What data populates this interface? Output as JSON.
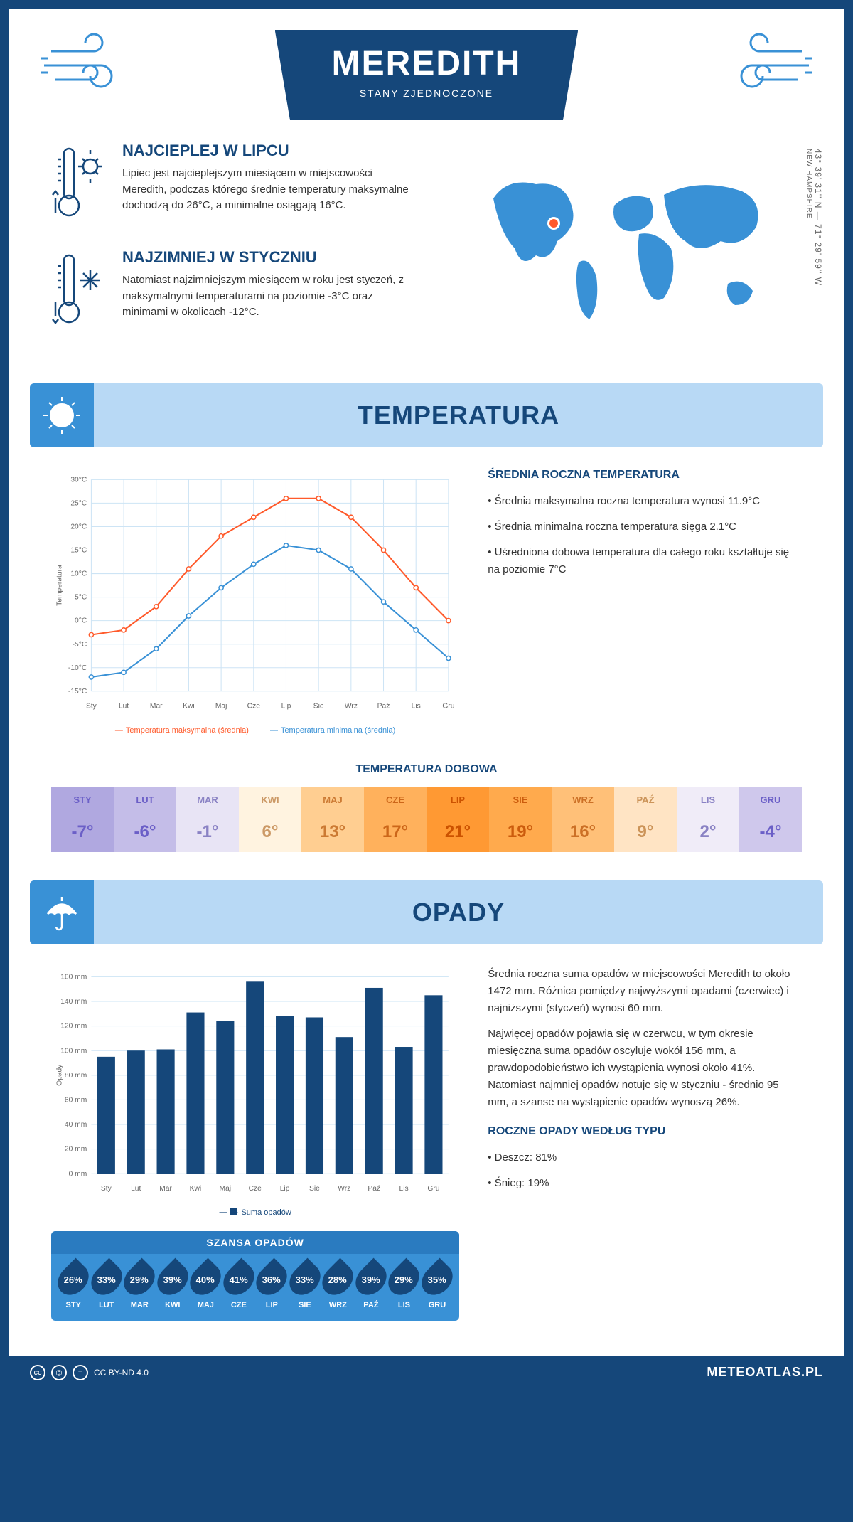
{
  "header": {
    "city": "MEREDITH",
    "country": "STANY ZJEDNOCZONE"
  },
  "location": {
    "coords": "43° 39' 31'' N — 71° 29' 59'' W",
    "state": "NEW HAMPSHIRE",
    "marker_color": "#ff5a2b",
    "map_color": "#3991d6"
  },
  "facts": {
    "hot": {
      "title": "NAJCIEPLEJ W LIPCU",
      "text": "Lipiec jest najcieplejszym miesiącem w miejscowości Meredith, podczas którego średnie temperatury maksymalne dochodzą do 26°C, a minimalne osiągają 16°C."
    },
    "cold": {
      "title": "NAJZIMNIEJ W STYCZNIU",
      "text": "Natomiast najzimniejszym miesiącem w roku jest styczeń, z maksymalnymi temperaturami na poziomie -3°C oraz minimami w okolicach -12°C."
    }
  },
  "sections": {
    "temperature_title": "TEMPERATURA",
    "precipitation_title": "OPADY"
  },
  "temp_chart": {
    "type": "line",
    "months": [
      "Sty",
      "Lut",
      "Mar",
      "Kwi",
      "Maj",
      "Cze",
      "Lip",
      "Sie",
      "Wrz",
      "Paź",
      "Lis",
      "Gru"
    ],
    "y_label": "Temperatura",
    "y_ticks": [
      -15,
      -10,
      -5,
      0,
      5,
      10,
      15,
      20,
      25,
      30
    ],
    "y_tick_labels": [
      "-15°C",
      "-10°C",
      "-5°C",
      "0°C",
      "5°C",
      "10°C",
      "15°C",
      "20°C",
      "25°C",
      "30°C"
    ],
    "ylim": [
      -15,
      30
    ],
    "series": [
      {
        "name": "Temperatura maksymalna (średnia)",
        "color": "#ff5a2b",
        "values": [
          -3,
          -2,
          3,
          11,
          18,
          22,
          26,
          26,
          22,
          15,
          7,
          0
        ]
      },
      {
        "name": "Temperatura minimalna (średnia)",
        "color": "#3991d6",
        "values": [
          -12,
          -11,
          -6,
          1,
          7,
          12,
          16,
          15,
          11,
          4,
          -2,
          -8
        ]
      }
    ],
    "marker_size": 3,
    "line_width": 2,
    "grid_color": "#cde4f5",
    "background": "#ffffff"
  },
  "temp_summary": {
    "title": "ŚREDNIA ROCZNA TEMPERATURA",
    "bullets": [
      "• Średnia maksymalna roczna temperatura wynosi 11.9°C",
      "• Średnia minimalna roczna temperatura sięga 2.1°C",
      "• Uśredniona dobowa temperatura dla całego roku kształtuje się na poziomie 7°C"
    ]
  },
  "daily_temp": {
    "title": "TEMPERATURA DOBOWA",
    "months": [
      "STY",
      "LUT",
      "MAR",
      "KWI",
      "MAJ",
      "CZE",
      "LIP",
      "SIE",
      "WRZ",
      "PAŹ",
      "LIS",
      "GRU"
    ],
    "values": [
      "-7°",
      "-6°",
      "-1°",
      "6°",
      "13°",
      "17°",
      "21°",
      "19°",
      "16°",
      "9°",
      "2°",
      "-4°"
    ],
    "colors": [
      "#b0a8e0",
      "#c4bde8",
      "#e8e4f5",
      "#fff3e0",
      "#ffce91",
      "#ffb15c",
      "#ff9933",
      "#ffaa4d",
      "#ffc078",
      "#ffe4c4",
      "#f0ecf8",
      "#cfc8ec"
    ],
    "text_colors": [
      "#6b5fc7",
      "#6b5fc7",
      "#8a82c4",
      "#cc9966",
      "#cc7a33",
      "#cc6619",
      "#cc5200",
      "#cc5c0d",
      "#cc7026",
      "#cc9459",
      "#8a82c4",
      "#6b5fc7"
    ]
  },
  "precip_chart": {
    "type": "bar",
    "months": [
      "Sty",
      "Lut",
      "Mar",
      "Kwi",
      "Maj",
      "Cze",
      "Lip",
      "Sie",
      "Wrz",
      "Paź",
      "Lis",
      "Gru"
    ],
    "y_label": "Opady",
    "y_ticks": [
      0,
      20,
      40,
      60,
      80,
      100,
      120,
      140,
      160
    ],
    "y_tick_labels": [
      "0 mm",
      "20 mm",
      "40 mm",
      "60 mm",
      "80 mm",
      "100 mm",
      "120 mm",
      "140 mm",
      "160 mm"
    ],
    "ylim": [
      0,
      160
    ],
    "values": [
      95,
      100,
      101,
      131,
      124,
      156,
      128,
      127,
      111,
      151,
      103,
      145
    ],
    "bar_color": "#15477a",
    "bar_width": 0.6,
    "legend_label": "Suma opadów",
    "grid_color": "#cde4f5"
  },
  "precip_text": {
    "p1": "Średnia roczna suma opadów w miejscowości Meredith to około 1472 mm. Różnica pomiędzy najwyższymi opadami (czerwiec) i najniższymi (styczeń) wynosi 60 mm.",
    "p2": "Najwięcej opadów pojawia się w czerwcu, w tym okresie miesięczna suma opadów oscyluje wokół 156 mm, a prawdopodobieństwo ich wystąpienia wynosi około 41%. Natomiast najmniej opadów notuje się w styczniu - średnio 95 mm, a szanse na wystąpienie opadów wynoszą 26%.",
    "type_title": "ROCZNE OPADY WEDŁUG TYPU",
    "type_rain": "• Deszcz: 81%",
    "type_snow": "• Śnieg: 19%"
  },
  "chance": {
    "title": "SZANSA OPADÓW",
    "months": [
      "STY",
      "LUT",
      "MAR",
      "KWI",
      "MAJ",
      "CZE",
      "LIP",
      "SIE",
      "WRZ",
      "PAŹ",
      "LIS",
      "GRU"
    ],
    "values": [
      "26%",
      "33%",
      "29%",
      "39%",
      "40%",
      "41%",
      "36%",
      "33%",
      "28%",
      "39%",
      "29%",
      "35%"
    ],
    "drop_color": "#15477a",
    "box_bg": "#3991d6"
  },
  "footer": {
    "license": "CC BY-ND 4.0",
    "brand": "METEOATLAS.PL"
  },
  "colors": {
    "primary": "#15477a",
    "accent": "#3991d6",
    "light": "#b8d9f5"
  }
}
